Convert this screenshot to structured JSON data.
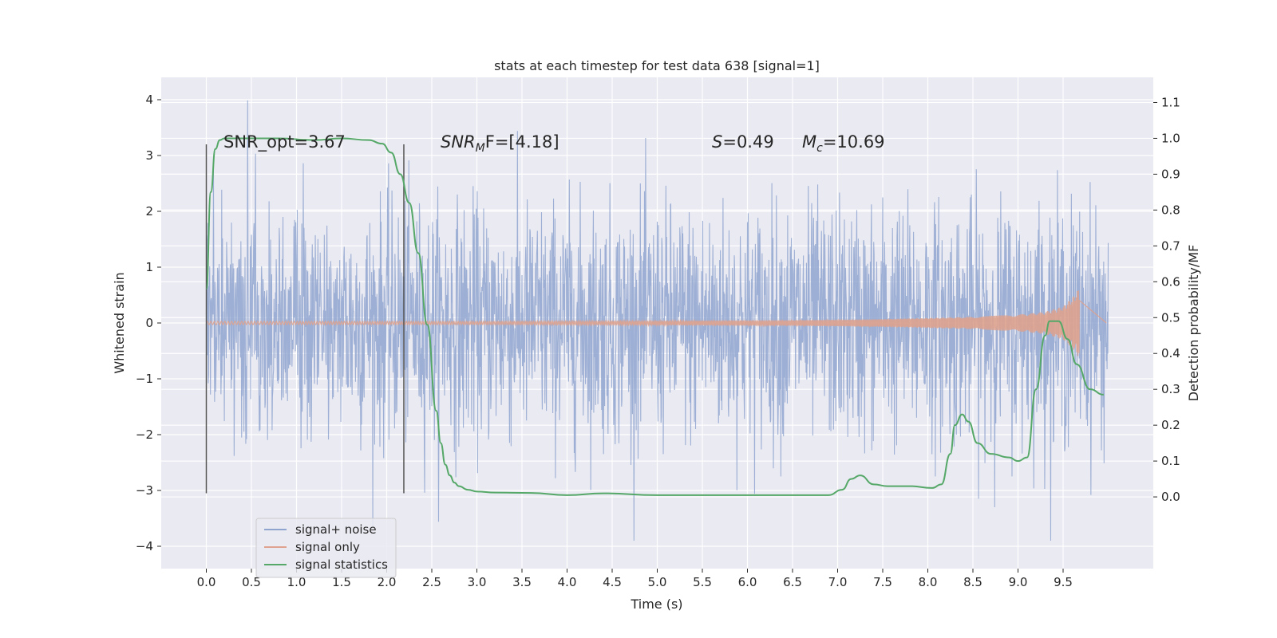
{
  "chart_data": {
    "type": "line",
    "title": "stats at each timestep for test data 638 [signal=1]",
    "xlabel": "Time (s)",
    "ylabel_left": "Whitened strain",
    "ylabel_right": "Detection probability/MF",
    "xlim": [
      -0.5,
      10.5
    ],
    "ylim_left": [
      -4.4,
      4.4
    ],
    "ylim_right": [
      -0.2,
      1.17
    ],
    "x_ticks": [
      0.0,
      0.5,
      1.0,
      1.5,
      2.0,
      2.5,
      3.0,
      3.5,
      4.0,
      4.5,
      5.0,
      5.5,
      6.0,
      6.5,
      7.0,
      7.5,
      8.0,
      8.5,
      9.0,
      9.5
    ],
    "x_tick_labels": [
      "0.0",
      "0.5",
      "1.0",
      "1.5",
      "2.0",
      "2.5",
      "3.0",
      "3.5",
      "4.0",
      "4.5",
      "5.0",
      "5.5",
      "6.0",
      "6.5",
      "7.0",
      "7.5",
      "8.0",
      "8.5",
      "9.0",
      "9.5"
    ],
    "y_left_ticks": [
      4,
      3,
      2,
      1,
      0,
      -1,
      -2,
      -3,
      -4
    ],
    "y_left_tick_labels": [
      "4",
      "3",
      "2",
      "1",
      "0",
      "−1",
      "−2",
      "−3",
      "−4"
    ],
    "y_right_ticks": [
      1.1,
      1.0,
      0.9,
      0.8,
      0.7,
      0.6,
      0.5,
      0.4,
      0.3,
      0.2,
      0.1,
      0.0
    ],
    "y_right_tick_labels": [
      "1.1",
      "1.0",
      "0.9",
      "0.8",
      "0.7",
      "0.6",
      "0.5",
      "0.4",
      "0.3",
      "0.2",
      "0.1",
      "0.0"
    ],
    "grid": true,
    "legend_position": "bottom-left",
    "series": [
      {
        "name": "signal+ noise",
        "axis": "left",
        "color": "#8fa5cf",
        "description_range": {
          "x": [
            0,
            10
          ],
          "y_typical": [
            -1.8,
            1.8
          ],
          "y_extremes": [
            -3.9,
            4.05
          ]
        }
      },
      {
        "name": "signal only",
        "axis": "left",
        "color": "#dea28e",
        "envelope": {
          "x": [
            0.0,
            3.0,
            5.0,
            6.5,
            7.5,
            8.5,
            9.0,
            9.3,
            9.5,
            9.6,
            9.65,
            9.68
          ],
          "amplitude": [
            0.03,
            0.03,
            0.04,
            0.05,
            0.07,
            0.11,
            0.15,
            0.2,
            0.3,
            0.45,
            0.55,
            0.65
          ]
        }
      },
      {
        "name": "signal statistics",
        "axis": "right",
        "color": "#55a868",
        "x": [
          0.0,
          0.05,
          0.1,
          0.15,
          0.2,
          0.4,
          0.8,
          1.2,
          1.5,
          1.8,
          1.95,
          2.05,
          2.15,
          2.25,
          2.35,
          2.45,
          2.55,
          2.6,
          2.65,
          2.7,
          2.75,
          2.8,
          2.9,
          3.0,
          3.2,
          3.6,
          4.0,
          4.4,
          5.0,
          5.6,
          6.0,
          6.5,
          6.9,
          7.05,
          7.15,
          7.25,
          7.4,
          7.55,
          7.8,
          8.05,
          8.15,
          8.25,
          8.3,
          8.38,
          8.45,
          8.55,
          8.7,
          8.9,
          9.0,
          9.1,
          9.2,
          9.3,
          9.35,
          9.45,
          9.55,
          9.65,
          9.8,
          9.95
        ],
        "y": [
          0.58,
          0.85,
          0.97,
          0.995,
          1.0,
          1.0,
          1.0,
          0.995,
          1.0,
          0.995,
          0.985,
          0.96,
          0.9,
          0.82,
          0.68,
          0.48,
          0.24,
          0.15,
          0.09,
          0.06,
          0.04,
          0.03,
          0.02,
          0.015,
          0.012,
          0.011,
          0.005,
          0.01,
          0.005,
          0.005,
          0.005,
          0.005,
          0.005,
          0.02,
          0.05,
          0.06,
          0.035,
          0.03,
          0.03,
          0.025,
          0.035,
          0.12,
          0.2,
          0.23,
          0.21,
          0.15,
          0.12,
          0.11,
          0.1,
          0.11,
          0.3,
          0.45,
          0.49,
          0.49,
          0.44,
          0.37,
          0.3,
          0.285
        ]
      }
    ],
    "vertical_lines": [
      0.0,
      2.19
    ],
    "annotations": [
      {
        "text": "SNR_opt=3.67",
        "x": 0.2,
        "y": 3.25
      },
      {
        "text_main": "SNR",
        "text_sub": "M",
        "text_rest": "F=[4.18]",
        "x": 2.6,
        "y": 3.25
      },
      {
        "text_main": "S",
        "text_rest": "=0.49",
        "x": 5.6,
        "y": 3.25
      },
      {
        "text_main": "M",
        "text_sub": "c",
        "text_rest": "=10.69",
        "x": 6.6,
        "y": 3.25
      }
    ]
  }
}
